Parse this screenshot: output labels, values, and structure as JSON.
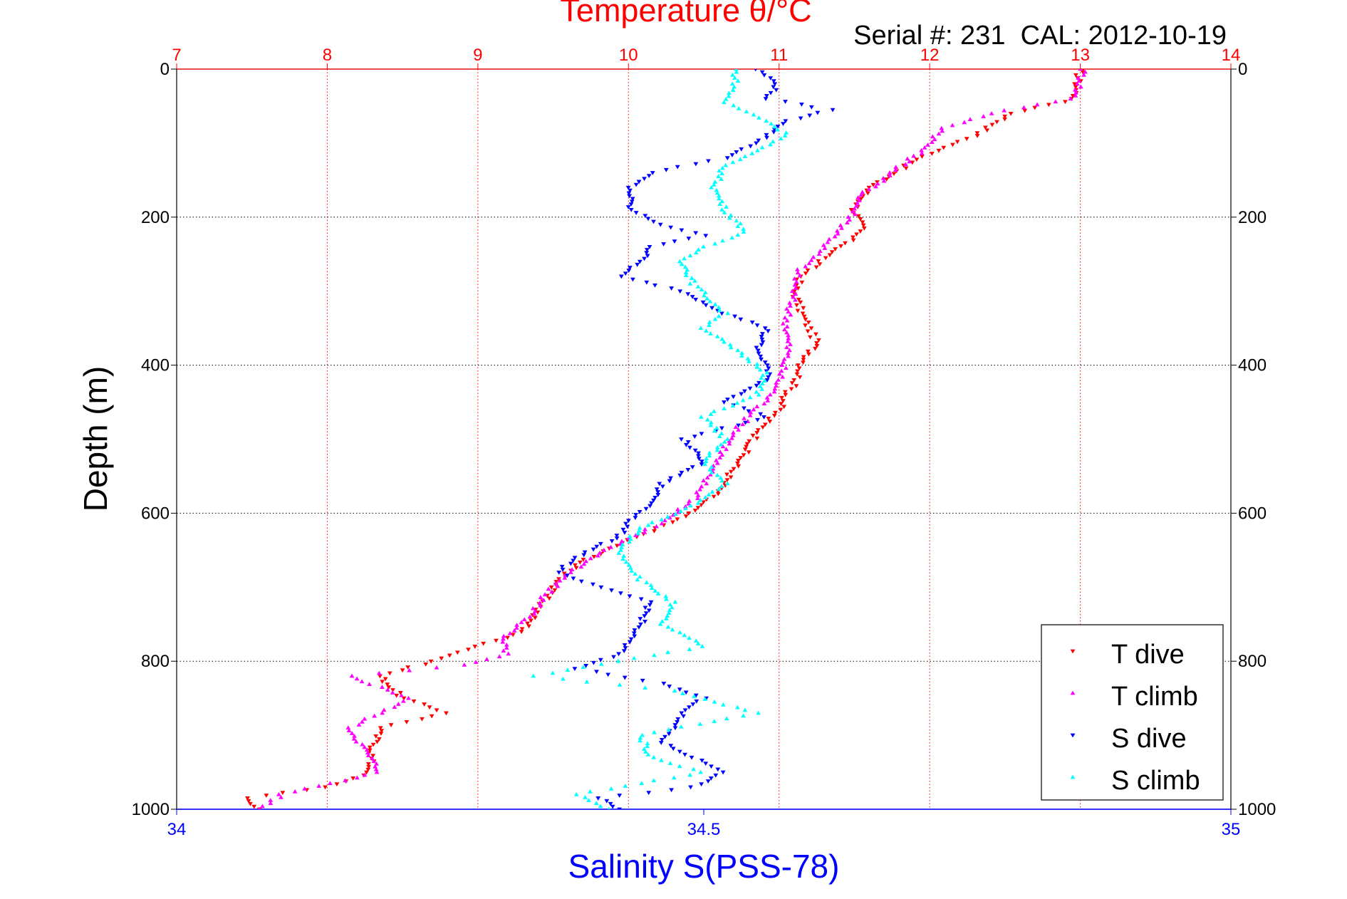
{
  "chart_data": {
    "type": "scatter",
    "title": "Temperature θ/°C",
    "subtitle": "Serial #: 231  CAL: 2012-10-19",
    "ylabel": "Depth (m)",
    "xlabel": "Salinity S(PSS-78)",
    "grid": true,
    "legend_position": "bottom-right",
    "axes": {
      "temperature": {
        "label": "Temperature θ/°C",
        "position": "top",
        "range": [
          7,
          14
        ],
        "ticks": [
          "7",
          "8",
          "9",
          "10",
          "11",
          "12",
          "13",
          "14"
        ],
        "color": "#ff0000"
      },
      "salinity": {
        "label": "Salinity S(PSS-78)",
        "position": "bottom",
        "range": [
          34,
          35
        ],
        "ticks": [
          "34",
          "34.5",
          "35"
        ],
        "color": "#0000ff"
      },
      "depth": {
        "label": "Depth (m)",
        "range": [
          0,
          1000
        ],
        "reversed": true,
        "ticks": [
          "0",
          "200",
          "400",
          "600",
          "800",
          "1000"
        ]
      }
    },
    "series": [
      {
        "name": "T dive",
        "axis": "temperature",
        "color": "#ff0000",
        "marker": "triangle-down",
        "points": [
          [
            13.0,
            0
          ],
          [
            12.98,
            20
          ],
          [
            12.96,
            40
          ],
          [
            12.55,
            60
          ],
          [
            12.3,
            90
          ],
          [
            12.05,
            110
          ],
          [
            11.85,
            130
          ],
          [
            11.6,
            160
          ],
          [
            11.5,
            190
          ],
          [
            11.55,
            215
          ],
          [
            11.45,
            235
          ],
          [
            11.3,
            255
          ],
          [
            11.15,
            280
          ],
          [
            11.1,
            300
          ],
          [
            11.15,
            330
          ],
          [
            11.2,
            350
          ],
          [
            11.25,
            370
          ],
          [
            11.15,
            400
          ],
          [
            11.12,
            420
          ],
          [
            11.05,
            440
          ],
          [
            11.0,
            460
          ],
          [
            10.9,
            480
          ],
          [
            10.8,
            510
          ],
          [
            10.7,
            540
          ],
          [
            10.6,
            570
          ],
          [
            10.4,
            600
          ],
          [
            10.2,
            620
          ],
          [
            9.95,
            640
          ],
          [
            9.65,
            670
          ],
          [
            9.5,
            700
          ],
          [
            9.4,
            730
          ],
          [
            9.3,
            760
          ],
          [
            9.0,
            780
          ],
          [
            8.7,
            800
          ],
          [
            8.35,
            820
          ],
          [
            8.5,
            850
          ],
          [
            8.8,
            870
          ],
          [
            8.35,
            890
          ],
          [
            8.3,
            920
          ],
          [
            8.28,
            950
          ],
          [
            8.0,
            970
          ],
          [
            7.45,
            985
          ],
          [
            7.55,
            1000
          ]
        ]
      },
      {
        "name": "T climb",
        "axis": "temperature",
        "color": "#ff00ff",
        "marker": "triangle-up",
        "points": [
          [
            13.02,
            0
          ],
          [
            13.0,
            20
          ],
          [
            12.95,
            40
          ],
          [
            12.4,
            60
          ],
          [
            12.1,
            80
          ],
          [
            11.95,
            110
          ],
          [
            11.75,
            140
          ],
          [
            11.55,
            170
          ],
          [
            11.48,
            200
          ],
          [
            11.35,
            230
          ],
          [
            11.25,
            250
          ],
          [
            11.12,
            275
          ],
          [
            11.1,
            300
          ],
          [
            11.05,
            340
          ],
          [
            11.06,
            380
          ],
          [
            11.0,
            420
          ],
          [
            10.95,
            440
          ],
          [
            10.85,
            460
          ],
          [
            10.75,
            480
          ],
          [
            10.65,
            510
          ],
          [
            10.55,
            540
          ],
          [
            10.45,
            580
          ],
          [
            10.25,
            610
          ],
          [
            10.05,
            630
          ],
          [
            9.85,
            650
          ],
          [
            9.6,
            680
          ],
          [
            9.45,
            710
          ],
          [
            9.35,
            740
          ],
          [
            9.15,
            770
          ],
          [
            9.2,
            790
          ],
          [
            8.9,
            805
          ],
          [
            8.15,
            820
          ],
          [
            8.55,
            850
          ],
          [
            8.15,
            890
          ],
          [
            8.25,
            920
          ],
          [
            8.35,
            950
          ],
          [
            7.7,
            980
          ],
          [
            7.55,
            1000
          ]
        ]
      },
      {
        "name": "S dive",
        "axis": "salinity",
        "color": "#0000ff",
        "marker": "triangle-down",
        "points": [
          [
            34.55,
            0
          ],
          [
            34.57,
            20
          ],
          [
            34.56,
            40
          ],
          [
            34.62,
            55
          ],
          [
            34.58,
            70
          ],
          [
            34.55,
            100
          ],
          [
            34.52,
            120
          ],
          [
            34.45,
            140
          ],
          [
            34.43,
            160
          ],
          [
            34.43,
            190
          ],
          [
            34.46,
            210
          ],
          [
            34.5,
            225
          ],
          [
            34.45,
            240
          ],
          [
            34.44,
            260
          ],
          [
            34.42,
            280
          ],
          [
            34.48,
            300
          ],
          [
            34.52,
            330
          ],
          [
            34.56,
            350
          ],
          [
            34.55,
            380
          ],
          [
            34.56,
            400
          ],
          [
            34.56,
            420
          ],
          [
            34.52,
            450
          ],
          [
            34.56,
            470
          ],
          [
            34.48,
            500
          ],
          [
            34.5,
            530
          ],
          [
            34.46,
            560
          ],
          [
            34.45,
            590
          ],
          [
            34.43,
            610
          ],
          [
            34.42,
            630
          ],
          [
            34.38,
            660
          ],
          [
            34.36,
            680
          ],
          [
            34.4,
            700
          ],
          [
            34.45,
            720
          ],
          [
            34.44,
            750
          ],
          [
            34.43,
            770
          ],
          [
            34.42,
            790
          ],
          [
            34.38,
            810
          ],
          [
            34.46,
            830
          ],
          [
            34.5,
            850
          ],
          [
            34.48,
            870
          ],
          [
            34.47,
            890
          ],
          [
            34.46,
            910
          ],
          [
            34.49,
            930
          ],
          [
            34.52,
            950
          ],
          [
            34.49,
            970
          ],
          [
            34.4,
            985
          ],
          [
            34.42,
            1000
          ]
        ]
      },
      {
        "name": "S climb",
        "axis": "salinity",
        "color": "#00ffff",
        "marker": "triangle-up",
        "points": [
          [
            34.53,
            0
          ],
          [
            34.53,
            20
          ],
          [
            34.52,
            45
          ],
          [
            34.56,
            70
          ],
          [
            34.58,
            90
          ],
          [
            34.55,
            110
          ],
          [
            34.52,
            130
          ],
          [
            34.51,
            160
          ],
          [
            34.52,
            190
          ],
          [
            34.54,
            220
          ],
          [
            34.5,
            240
          ],
          [
            34.48,
            260
          ],
          [
            34.49,
            290
          ],
          [
            34.52,
            330
          ],
          [
            34.5,
            350
          ],
          [
            34.53,
            380
          ],
          [
            34.56,
            410
          ],
          [
            34.55,
            440
          ],
          [
            34.5,
            470
          ],
          [
            34.52,
            500
          ],
          [
            34.5,
            530
          ],
          [
            34.52,
            560
          ],
          [
            34.49,
            590
          ],
          [
            34.44,
            620
          ],
          [
            34.42,
            650
          ],
          [
            34.44,
            690
          ],
          [
            34.47,
            720
          ],
          [
            34.46,
            750
          ],
          [
            34.5,
            780
          ],
          [
            34.34,
            820
          ],
          [
            34.47,
            840
          ],
          [
            34.55,
            870
          ],
          [
            34.44,
            900
          ],
          [
            34.45,
            930
          ],
          [
            34.5,
            950
          ],
          [
            34.38,
            980
          ],
          [
            34.41,
            1000
          ]
        ]
      }
    ],
    "legend": [
      "T dive",
      "T climb",
      "S dive",
      "S climb"
    ]
  }
}
